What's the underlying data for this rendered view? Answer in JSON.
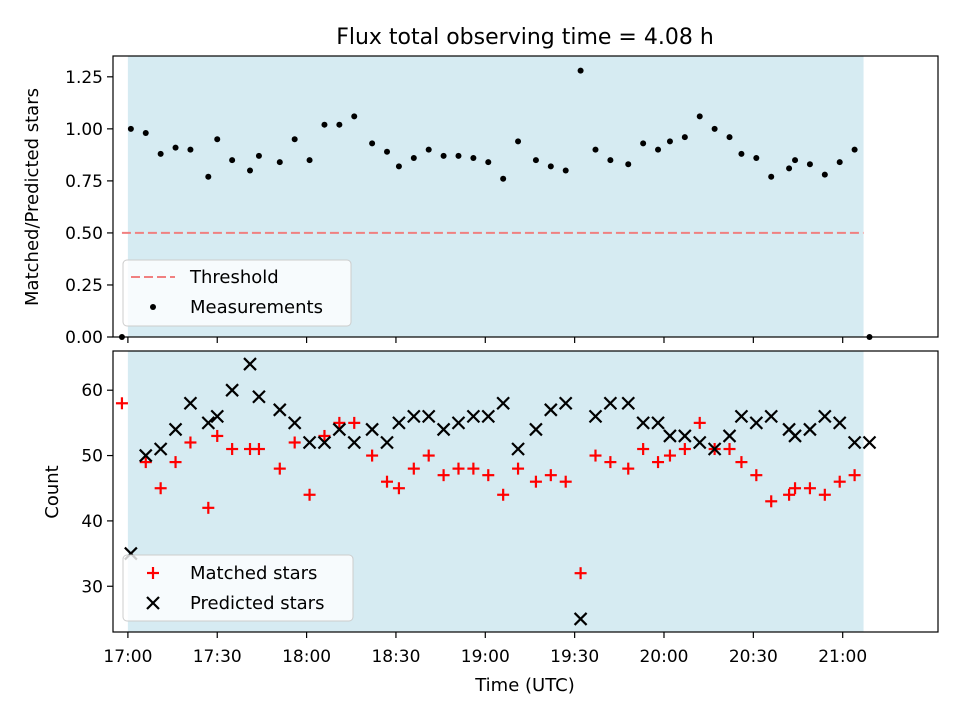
{
  "chart_data": [
    {
      "type": "scatter",
      "title": "Flux total observing time = 4.08 h",
      "ylabel": "Matched/Predicted stars",
      "xlabel": "",
      "xlim_minutes": [
        1015,
        1292
      ],
      "ylim": [
        0,
        1.35
      ],
      "yticks": [
        "0.00",
        "0.25",
        "0.50",
        "0.75",
        "1.00",
        "1.25"
      ],
      "ytick_values": [
        0,
        0.25,
        0.5,
        0.75,
        1.0,
        1.25
      ],
      "grid": false,
      "legend_position": "lower-left",
      "shaded_span_minutes": [
        1020,
        1267
      ],
      "shade_color": "#add8e6",
      "threshold": {
        "name": "Threshold",
        "value": 0.5,
        "x_start_minutes": 1018,
        "x_end_minutes": 1267,
        "color": "#f08080"
      },
      "series": [
        {
          "name": "Measurements",
          "color": "#000000",
          "x_minutes": [
            1018,
            1021,
            1026,
            1031,
            1036,
            1041,
            1047,
            1050,
            1055,
            1061,
            1064,
            1071,
            1076,
            1081,
            1086,
            1091,
            1096,
            1102,
            1107,
            1111,
            1116,
            1121,
            1126,
            1131,
            1136,
            1141,
            1146,
            1151,
            1157,
            1162,
            1167,
            1172,
            1177,
            1182,
            1188,
            1193,
            1198,
            1202,
            1207,
            1212,
            1217,
            1222,
            1226,
            1231,
            1236,
            1242,
            1244,
            1249,
            1254,
            1259,
            1264,
            1269
          ],
          "y": [
            0.0,
            1.0,
            0.98,
            0.88,
            0.91,
            0.9,
            0.77,
            0.95,
            0.85,
            0.8,
            0.87,
            0.84,
            0.95,
            0.85,
            1.02,
            1.02,
            1.06,
            0.93,
            0.89,
            0.82,
            0.86,
            0.9,
            0.87,
            0.87,
            0.86,
            0.84,
            0.76,
            0.94,
            0.85,
            0.82,
            0.8,
            1.28,
            0.9,
            0.85,
            0.83,
            0.93,
            0.9,
            0.94,
            0.96,
            1.06,
            1.0,
            0.96,
            0.88,
            0.86,
            0.77,
            0.81,
            0.85,
            0.83,
            0.78,
            0.84,
            0.9,
            0.0
          ]
        }
      ]
    },
    {
      "type": "scatter",
      "title": "",
      "ylabel": "Count",
      "xlabel": "Time (UTC)",
      "xlim_minutes": [
        1015,
        1292
      ],
      "ylim": [
        23,
        66
      ],
      "yticks": [
        "30",
        "40",
        "50",
        "60"
      ],
      "ytick_values": [
        30,
        40,
        50,
        60
      ],
      "xticks": [
        "17:00",
        "17:30",
        "18:00",
        "18:30",
        "19:00",
        "19:30",
        "20:00",
        "20:30",
        "21:00"
      ],
      "xtick_minutes": [
        1020,
        1050,
        1080,
        1110,
        1140,
        1170,
        1200,
        1230,
        1260
      ],
      "grid": false,
      "legend_position": "lower-left",
      "shaded_span_minutes": [
        1020,
        1267
      ],
      "shade_color": "#add8e6",
      "series": [
        {
          "name": "Matched stars",
          "marker": "+",
          "color": "#ff0000",
          "x_minutes": [
            1018,
            1026,
            1031,
            1036,
            1041,
            1047,
            1050,
            1055,
            1061,
            1064,
            1071,
            1076,
            1081,
            1086,
            1091,
            1096,
            1102,
            1107,
            1111,
            1116,
            1121,
            1126,
            1131,
            1136,
            1141,
            1146,
            1151,
            1157,
            1162,
            1167,
            1172,
            1177,
            1182,
            1188,
            1193,
            1198,
            1202,
            1207,
            1212,
            1217,
            1222,
            1226,
            1231,
            1236,
            1242,
            1244,
            1249,
            1254,
            1259,
            1264
          ],
          "y": [
            58,
            49,
            45,
            49,
            52,
            42,
            53,
            51,
            51,
            51,
            48,
            52,
            44,
            53,
            55,
            55,
            50,
            46,
            45,
            48,
            50,
            47,
            48,
            48,
            47,
            44,
            48,
            46,
            47,
            46,
            32,
            50,
            49,
            48,
            51,
            49,
            50,
            51,
            55,
            51,
            51,
            49,
            47,
            43,
            44,
            45,
            45,
            44,
            46,
            47
          ]
        },
        {
          "name": "Predicted stars",
          "marker": "x",
          "color": "#000000",
          "x_minutes": [
            1021,
            1026,
            1031,
            1036,
            1041,
            1047,
            1050,
            1055,
            1061,
            1064,
            1071,
            1076,
            1081,
            1086,
            1091,
            1096,
            1102,
            1107,
            1111,
            1116,
            1121,
            1126,
            1131,
            1136,
            1141,
            1146,
            1151,
            1157,
            1162,
            1167,
            1172,
            1177,
            1182,
            1188,
            1193,
            1198,
            1202,
            1207,
            1212,
            1217,
            1222,
            1226,
            1231,
            1236,
            1242,
            1244,
            1249,
            1254,
            1259,
            1264,
            1269
          ],
          "y": [
            35,
            50,
            51,
            54,
            58,
            55,
            56,
            60,
            64,
            59,
            57,
            55,
            52,
            52,
            54,
            52,
            54,
            52,
            55,
            56,
            56,
            54,
            55,
            56,
            56,
            58,
            51,
            54,
            57,
            58,
            25,
            56,
            58,
            58,
            55,
            55,
            53,
            53,
            52,
            51,
            53,
            56,
            55,
            56,
            54,
            53,
            54,
            56,
            55,
            52,
            52
          ]
        }
      ]
    }
  ]
}
